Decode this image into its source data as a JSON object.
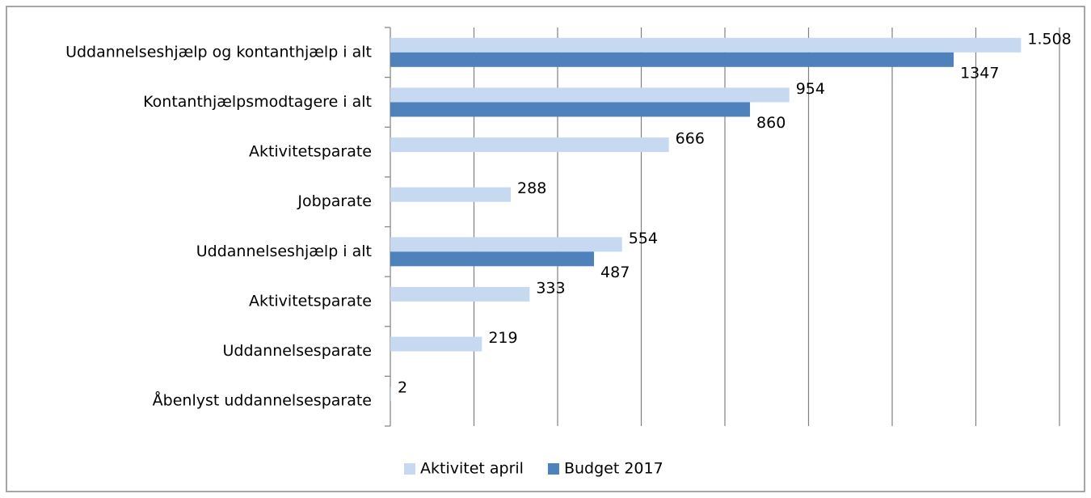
{
  "chart_data": {
    "type": "bar",
    "orientation": "horizontal",
    "categories": [
      "Uddannelseshjælp og kontanthjælp i alt",
      "Kontanthjælpsmodtagere i alt",
      "Aktivitetsparate",
      "Jobparate",
      "Uddannelseshjælp i alt",
      "Aktivitetsparate",
      "Uddannelsesparate",
      "Åbenlyst uddannelsesparate"
    ],
    "series": [
      {
        "name": "Aktivitet april",
        "color": "#c6d9f1",
        "values": [
          1508,
          954,
          666,
          288,
          554,
          333,
          219,
          2
        ],
        "value_labels": [
          "1.508",
          "954",
          "666",
          "288",
          "554",
          "333",
          "219",
          "2"
        ]
      },
      {
        "name": "Budget 2017",
        "color": "#4f81bd",
        "values": [
          1347,
          860,
          null,
          null,
          487,
          null,
          null,
          null
        ]
      }
    ],
    "xlim": [
      0,
      1600
    ],
    "xticks": [
      0,
      200,
      400,
      600,
      800,
      1000,
      1200,
      1400,
      1600
    ],
    "grid": true,
    "legend": "bottom"
  }
}
